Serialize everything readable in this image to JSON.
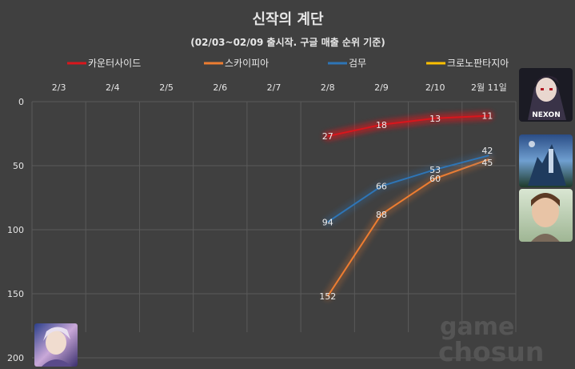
{
  "chart_data": {
    "type": "line",
    "title": "신작의 계단",
    "subtitle": "(02/03~02/09 출시작. 구글 매출 순위 기준)",
    "categories": [
      "2/3",
      "2/4",
      "2/5",
      "2/6",
      "2/7",
      "2/8",
      "2/9",
      "2/10",
      "2월 11일"
    ],
    "ylim": [
      0,
      200
    ],
    "y_reversed": true,
    "y_ticks": [
      0,
      50,
      100,
      150,
      200
    ],
    "grid": true,
    "legend_position": "top",
    "series": [
      {
        "name": "카운터사이드",
        "color": "#d9161c",
        "glow": true,
        "values": [
          null,
          null,
          null,
          null,
          null,
          27,
          18,
          13,
          11
        ]
      },
      {
        "name": "스카이피아",
        "color": "#ed7d31",
        "glow": false,
        "values": [
          null,
          null,
          null,
          null,
          null,
          152,
          88,
          60,
          45
        ]
      },
      {
        "name": "검무",
        "color": "#2e75b6",
        "glow": false,
        "values": [
          null,
          null,
          null,
          null,
          null,
          94,
          66,
          53,
          42
        ]
      },
      {
        "name": "크로노판타지아",
        "color": "#ffc000",
        "glow": false,
        "values": [
          null,
          null,
          null,
          null,
          null,
          null,
          null,
          null,
          null
        ]
      }
    ],
    "watermark": [
      "game",
      "chosun"
    ]
  },
  "images": {
    "counterside_icon": "game-icon-nexon",
    "skypia_icon": "game-icon-sky-castle",
    "gummu_icon": "game-icon-portrait",
    "chrono_icon": "game-icon-anime-character",
    "counterside_icon_text": "NEXON"
  }
}
